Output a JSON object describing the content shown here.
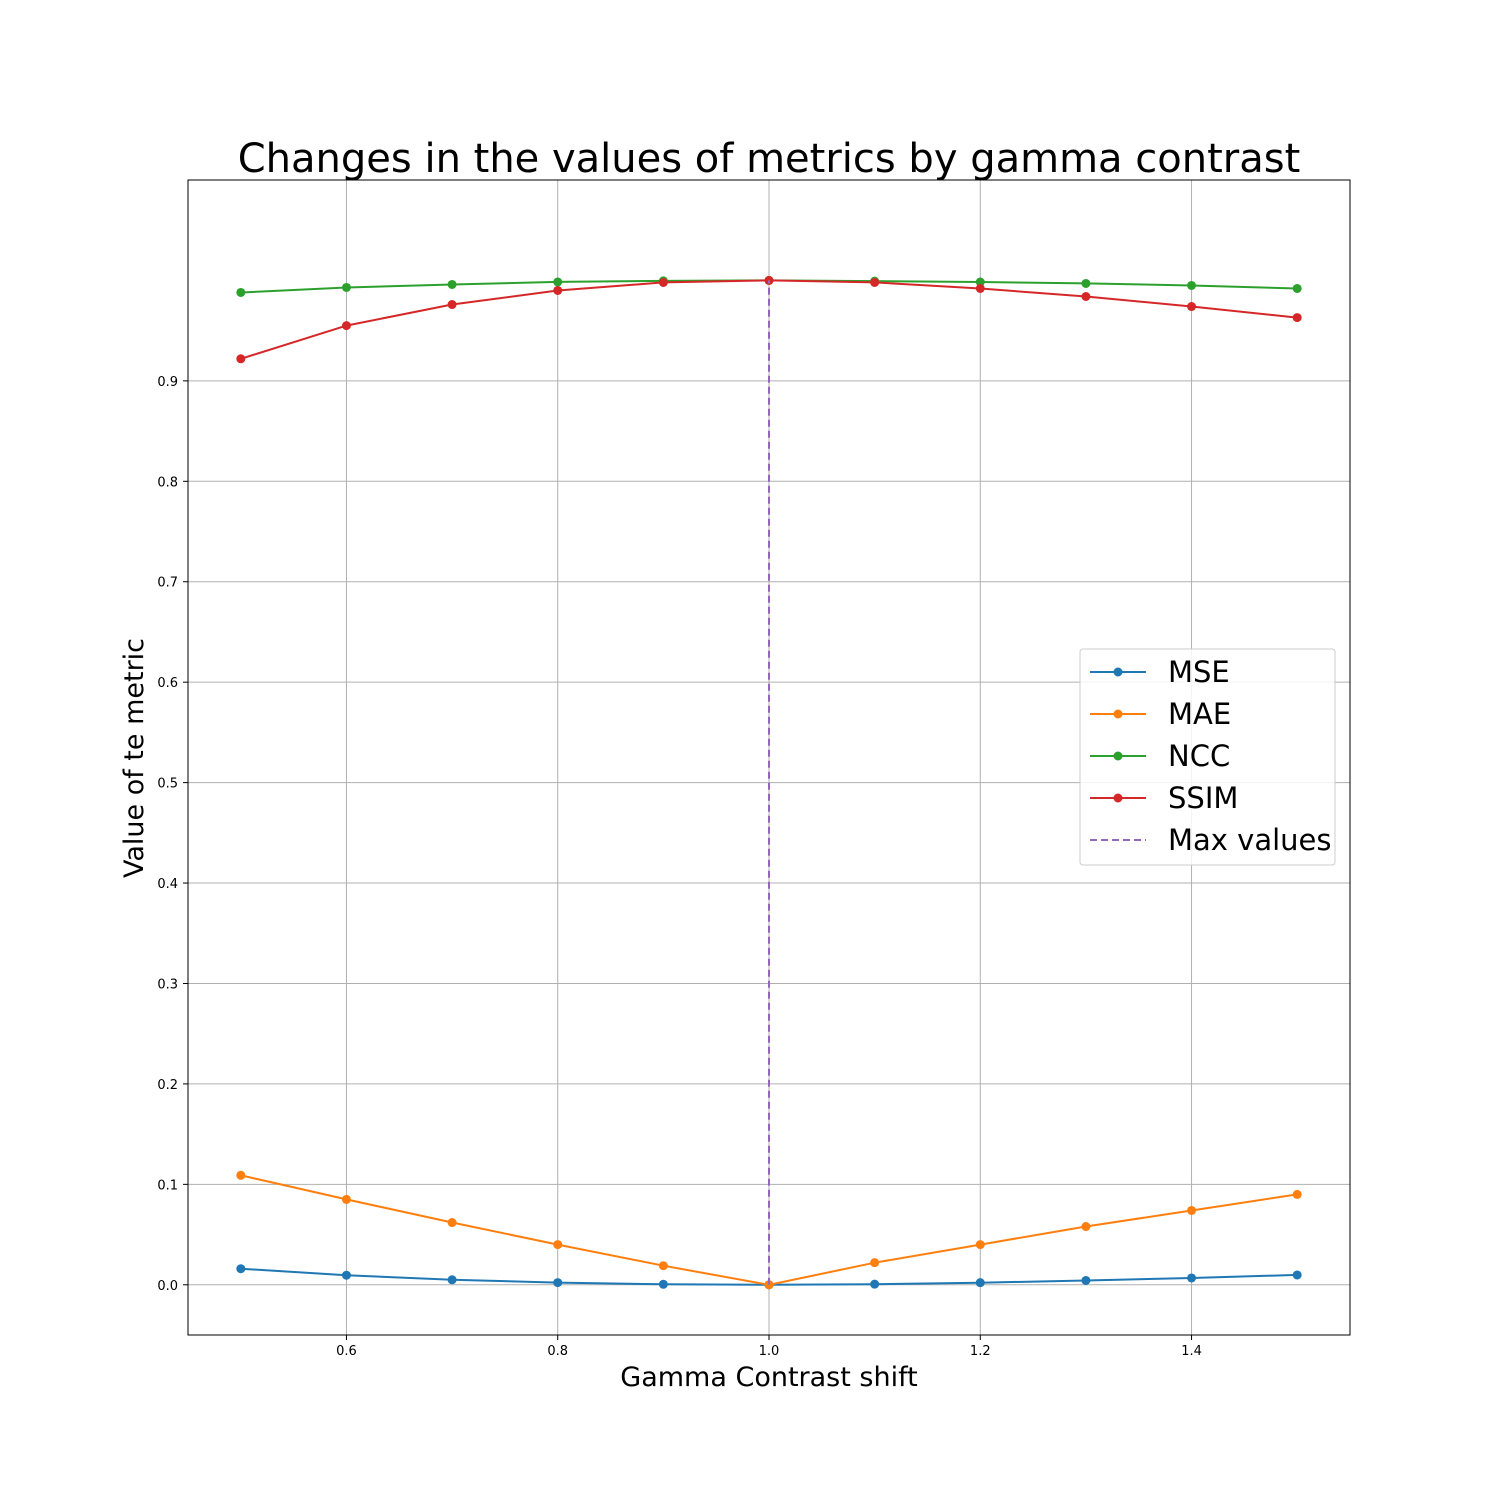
{
  "chart_data": {
    "type": "line",
    "title": "Changes in the values of metrics by gamma contrast",
    "xlabel": "Gamma Contrast shift",
    "ylabel": "Value of te metric",
    "xlim": [
      0.45,
      1.55
    ],
    "ylim": [
      -0.05,
      1.1
    ],
    "xticks": [
      0.6,
      0.8,
      1.0,
      1.2,
      1.4
    ],
    "xtick_labels": [
      "0.6",
      "0.8",
      "1.0",
      "1.2",
      "1.4"
    ],
    "yticks": [
      0.0,
      0.1,
      0.2,
      0.3,
      0.4,
      0.5,
      0.6,
      0.7,
      0.8,
      0.9
    ],
    "ytick_labels": [
      "0.0",
      "0.1",
      "0.2",
      "0.3",
      "0.4",
      "0.5",
      "0.6",
      "0.7",
      "0.8",
      "0.9"
    ],
    "grid": true,
    "legend_position": "center-right",
    "x": [
      0.5,
      0.6,
      0.7,
      0.8,
      0.9,
      1.0,
      1.1,
      1.2,
      1.3,
      1.4,
      1.5
    ],
    "series": [
      {
        "name": "MSE",
        "color": "#1f77b4",
        "marker": "circle",
        "values": [
          0.016,
          0.0095,
          0.005,
          0.0022,
          0.0005,
          0.0,
          0.0006,
          0.0021,
          0.0043,
          0.0068,
          0.0098
        ]
      },
      {
        "name": "MAE",
        "color": "#ff7f0e",
        "marker": "circle",
        "values": [
          0.109,
          0.085,
          0.062,
          0.04,
          0.019,
          0.0,
          0.022,
          0.04,
          0.058,
          0.074,
          0.09
        ]
      },
      {
        "name": "NCC",
        "color": "#2ca02c",
        "marker": "circle",
        "values": [
          0.988,
          0.993,
          0.996,
          0.9985,
          0.9995,
          1.0,
          0.9993,
          0.9984,
          0.997,
          0.995,
          0.992
        ]
      },
      {
        "name": "SSIM",
        "color": "#d62728",
        "marker": "circle",
        "values": [
          0.922,
          0.955,
          0.976,
          0.99,
          0.998,
          1.0,
          0.998,
          0.992,
          0.984,
          0.974,
          0.963
        ]
      }
    ],
    "reference_lines": [
      {
        "name": "Max values",
        "orientation": "vertical",
        "x": 1.0,
        "y_range": [
          0.0,
          1.0
        ],
        "color": "#9467bd",
        "style": "dashed"
      }
    ]
  }
}
